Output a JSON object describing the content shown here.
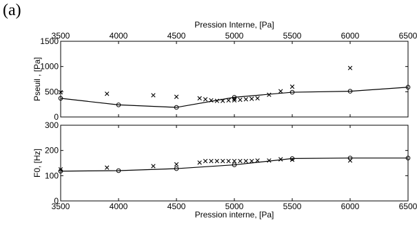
{
  "panel_label": "(a)",
  "chart_data": [
    {
      "type": "line",
      "xlabel": "Pression Interne, [Pa]",
      "ylabel": "Pseuil , [Pa]",
      "xlim": [
        3500,
        6500
      ],
      "ylim": [
        0,
        1500
      ],
      "xticks": [
        3500,
        4000,
        4500,
        5000,
        5500,
        6000,
        6500
      ],
      "yticks": [
        0,
        500,
        1000,
        1500
      ],
      "x_axis_position": "top",
      "grid": false,
      "series": [
        {
          "marker": "circle",
          "line": true,
          "x": [
            3500,
            4000,
            4500,
            5000,
            5500,
            6000,
            6500
          ],
          "y": [
            370,
            240,
            190,
            390,
            490,
            510,
            590
          ]
        },
        {
          "marker": "x",
          "line": false,
          "x": [
            3500,
            3900,
            4300,
            4500,
            4700,
            4750,
            4800,
            4850,
            4900,
            4950,
            5000,
            5000,
            5050,
            5100,
            5150,
            5200,
            5300,
            5400,
            5500,
            6000
          ],
          "y": [
            490,
            460,
            430,
            400,
            370,
            350,
            330,
            320,
            320,
            330,
            330,
            360,
            340,
            350,
            360,
            370,
            440,
            510,
            600,
            970
          ]
        }
      ]
    },
    {
      "type": "line",
      "xlabel": "Pression interne, [Pa]",
      "ylabel": "F0, [Hz]",
      "xlim": [
        3500,
        6500
      ],
      "ylim": [
        0,
        300
      ],
      "xticks": [
        3500,
        4000,
        4500,
        5000,
        5500,
        6000,
        6500
      ],
      "yticks": [
        0,
        100,
        200,
        300
      ],
      "x_axis_position": "bottom",
      "grid": false,
      "series": [
        {
          "marker": "circle",
          "line": true,
          "x": [
            3500,
            4000,
            4500,
            5000,
            5500,
            6000,
            6500
          ],
          "y": [
            118,
            120,
            128,
            143,
            168,
            170,
            170
          ]
        },
        {
          "marker": "x",
          "line": false,
          "x": [
            3500,
            3900,
            4300,
            4500,
            4700,
            4750,
            4800,
            4850,
            4900,
            4950,
            5000,
            5050,
            5100,
            5150,
            5200,
            5300,
            5400,
            5500,
            6000
          ],
          "y": [
            125,
            132,
            138,
            145,
            152,
            158,
            158,
            158,
            158,
            158,
            158,
            158,
            158,
            158,
            160,
            160,
            165,
            163,
            160
          ]
        }
      ]
    }
  ]
}
